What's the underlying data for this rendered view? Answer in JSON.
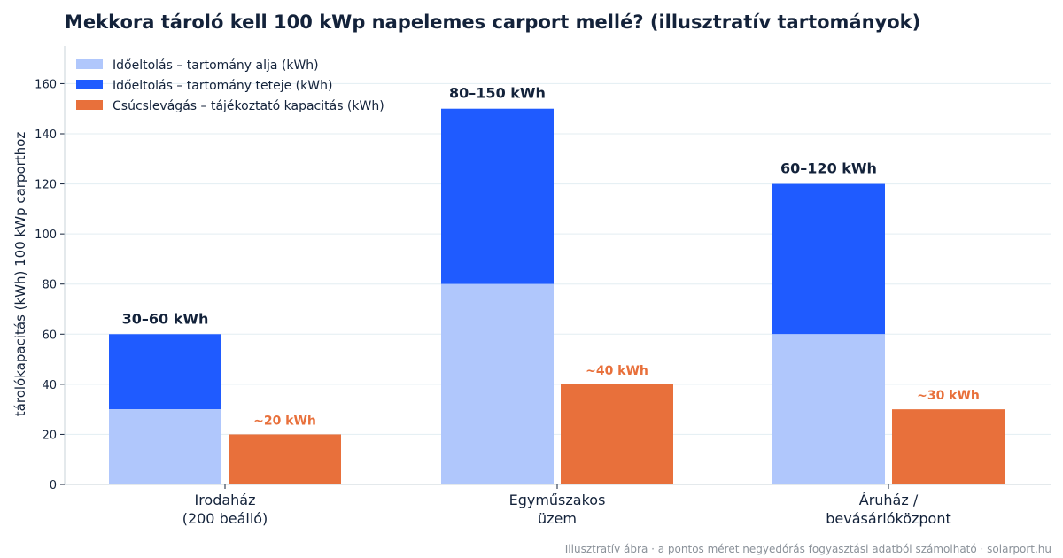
{
  "title": "Mekkora tároló kell 100 kWp napelemes carport mellé? (illusztratív tartományok)",
  "footer": "Illusztratív ábra · a pontos méret negyedórás fogyasztási adatból számolható · solarport.hu",
  "colors": {
    "shift_low": "#b0c7fc",
    "shift_high": "#1f5bff",
    "peak": "#e8703b",
    "text": "#13223a",
    "grid": "#e3eef2",
    "axis": "#c8d3da"
  },
  "chart_data": {
    "type": "bar",
    "ylabel": "tárolókapacitás (kWh) 100 kWp carporthoz",
    "ylim": [
      0,
      175
    ],
    "yticks": [
      0,
      20,
      40,
      60,
      80,
      100,
      120,
      140,
      160
    ],
    "grid": true,
    "legend_position": "top-left",
    "categories": [
      [
        "Irodaház",
        "(200 beálló)"
      ],
      [
        "Egyműszakos",
        "üzem"
      ],
      [
        "Áruház /",
        "bevásárlóközpont"
      ]
    ],
    "series": [
      {
        "name": "Időeltolás – tartomány alja (kWh)",
        "values": [
          30,
          80,
          60
        ]
      },
      {
        "name": "Időeltolás – tartomány teteje (kWh)",
        "values": [
          60,
          150,
          120
        ]
      },
      {
        "name": "Csúcslevágás – tájékoztató kapacitás (kWh)",
        "values": [
          20,
          40,
          30
        ]
      }
    ],
    "range_labels": [
      "30–60 kWh",
      "80–150 kWh",
      "60–120 kWh"
    ],
    "peak_labels": [
      "~20 kWh",
      "~40 kWh",
      "~30 kWh"
    ]
  }
}
